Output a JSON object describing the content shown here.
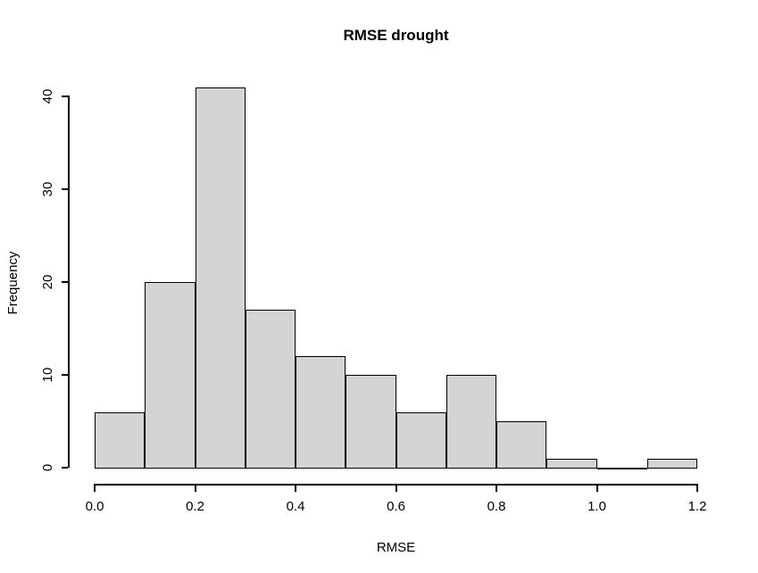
{
  "chart_data": {
    "type": "bar",
    "subtype": "histogram",
    "title": "RMSE drought",
    "xlabel": "RMSE",
    "ylabel": "Frequency",
    "categories": [
      "0.0-0.1",
      "0.1-0.2",
      "0.2-0.3",
      "0.3-0.4",
      "0.4-0.5",
      "0.5-0.6",
      "0.6-0.7",
      "0.7-0.8",
      "0.8-0.9",
      "0.9-1.0",
      "1.0-1.1",
      "1.1-1.2"
    ],
    "values": [
      6,
      20,
      41,
      17,
      12,
      10,
      6,
      10,
      5,
      1,
      0,
      1
    ],
    "bin_start": 0.0,
    "bin_end": 1.2,
    "bin_width": 0.1,
    "x_ticks": [
      0.0,
      0.2,
      0.4,
      0.6,
      0.8,
      1.0,
      1.2
    ],
    "x_tick_labels": [
      "0.0",
      "0.2",
      "0.4",
      "0.6",
      "0.8",
      "1.0",
      "1.2"
    ],
    "y_ticks": [
      0,
      10,
      20,
      30,
      40
    ],
    "y_tick_labels": [
      "0",
      "10",
      "20",
      "30",
      "40"
    ],
    "xlim": [
      0.0,
      1.2
    ],
    "ylim": [
      0,
      40
    ],
    "grid": false,
    "legend": null,
    "bar_fill_color": "#d4d4d4",
    "bar_border_color": "#000000",
    "axis_color": "#000000",
    "background_color": "#ffffff"
  }
}
